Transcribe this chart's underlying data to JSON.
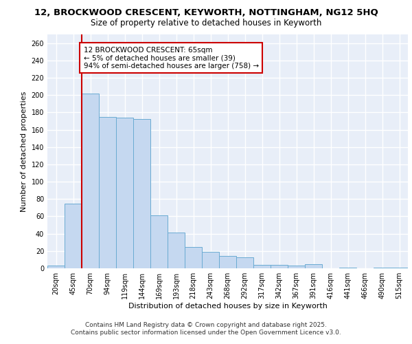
{
  "title_line1": "12, BROCKWOOD CRESCENT, KEYWORTH, NOTTINGHAM, NG12 5HQ",
  "title_line2": "Size of property relative to detached houses in Keyworth",
  "xlabel": "Distribution of detached houses by size in Keyworth",
  "ylabel": "Number of detached properties",
  "categories": [
    "20sqm",
    "45sqm",
    "70sqm",
    "94sqm",
    "119sqm",
    "144sqm",
    "169sqm",
    "193sqm",
    "218sqm",
    "243sqm",
    "268sqm",
    "292sqm",
    "317sqm",
    "342sqm",
    "367sqm",
    "391sqm",
    "416sqm",
    "441sqm",
    "466sqm",
    "490sqm",
    "515sqm"
  ],
  "values": [
    3,
    75,
    202,
    175,
    174,
    172,
    61,
    41,
    25,
    19,
    14,
    13,
    4,
    4,
    3,
    5,
    0,
    1,
    0,
    1,
    1
  ],
  "bar_color": "#c5d8f0",
  "bar_edgecolor": "#6aabd2",
  "red_line_x": 1.5,
  "annotation_title": "12 BROCKWOOD CRESCENT: 65sqm",
  "annotation_line1": "← 5% of detached houses are smaller (39)",
  "annotation_line2": "94% of semi-detached houses are larger (758) →",
  "annotation_box_color": "#ffffff",
  "annotation_box_edgecolor": "#cc0000",
  "red_line_color": "#cc0000",
  "ylim": [
    0,
    270
  ],
  "yticks": [
    0,
    20,
    40,
    60,
    80,
    100,
    120,
    140,
    160,
    180,
    200,
    220,
    240,
    260
  ],
  "background_color": "#e8eef8",
  "grid_color": "#ffffff",
  "footer_line1": "Contains HM Land Registry data © Crown copyright and database right 2025.",
  "footer_line2": "Contains public sector information licensed under the Open Government Licence v3.0.",
  "title_fontsize": 9.5,
  "subtitle_fontsize": 8.5,
  "axis_label_fontsize": 8,
  "tick_fontsize": 7,
  "annotation_fontsize": 7.5,
  "footer_fontsize": 6.5
}
